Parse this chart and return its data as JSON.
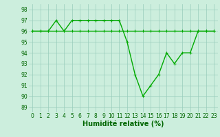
{
  "x": [
    0,
    1,
    2,
    3,
    4,
    5,
    6,
    7,
    8,
    9,
    10,
    11,
    12,
    13,
    14,
    15,
    16,
    17,
    18,
    19,
    20,
    21,
    22,
    23
  ],
  "line1": [
    96,
    96,
    96,
    96,
    96,
    96,
    96,
    96,
    96,
    96,
    96,
    96,
    96,
    96,
    96,
    96,
    96,
    96,
    96,
    96,
    96,
    96,
    96,
    96
  ],
  "line2": [
    96,
    96,
    96,
    97,
    96,
    97,
    97,
    97,
    97,
    97,
    97,
    97,
    95,
    92,
    90,
    91,
    92,
    94,
    93,
    94,
    94,
    96,
    96,
    96
  ],
  "line_color": "#00aa00",
  "bg_color": "#cceedd",
  "grid_color": "#99ccbb",
  "xlabel": "Humidité relative (%)",
  "ylim_min": 88.5,
  "ylim_max": 98.5,
  "xlim_min": -0.5,
  "xlim_max": 23.5,
  "yticks": [
    89,
    90,
    91,
    92,
    93,
    94,
    95,
    96,
    97,
    98
  ],
  "xticks": [
    0,
    1,
    2,
    3,
    4,
    5,
    6,
    7,
    8,
    9,
    10,
    11,
    12,
    13,
    14,
    15,
    16,
    17,
    18,
    19,
    20,
    21,
    22,
    23
  ],
  "tick_fontsize": 5.5,
  "xlabel_fontsize": 7.0,
  "marker": "+",
  "markersize": 3.5,
  "linewidth": 1.0,
  "tick_color": "#006600",
  "label_color": "#006600"
}
